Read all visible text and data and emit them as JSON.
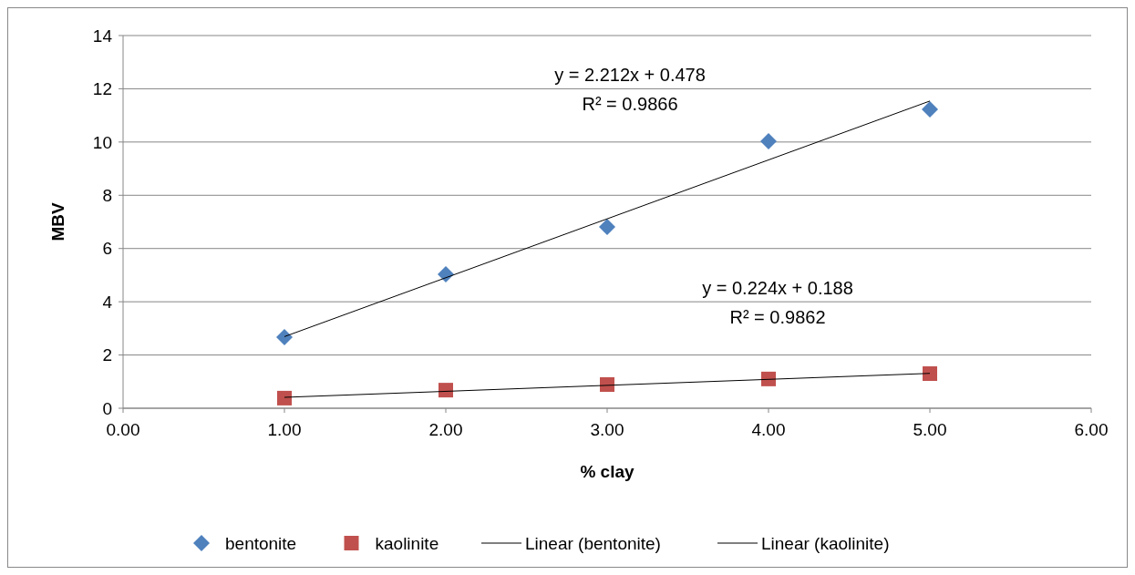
{
  "chart_data": {
    "type": "scatter",
    "xlabel": "% clay",
    "ylabel": "MBV",
    "xlim": [
      0,
      6
    ],
    "xticks": [
      {
        "value": 0,
        "label": "0.00"
      },
      {
        "value": 1,
        "label": "1.00"
      },
      {
        "value": 2,
        "label": "2.00"
      },
      {
        "value": 3,
        "label": "3.00"
      },
      {
        "value": 4,
        "label": "4.00"
      },
      {
        "value": 5,
        "label": "5.00"
      },
      {
        "value": 6,
        "label": "6.00"
      }
    ],
    "ylim": [
      0,
      14
    ],
    "yticks": [
      0,
      2,
      4,
      6,
      8,
      10,
      12,
      14
    ],
    "grid": "y",
    "legend": "bottom",
    "series": [
      {
        "name": "bentonite",
        "marker": "diamond",
        "color": "#4f81bd",
        "x": [
          1,
          2,
          3,
          4,
          5
        ],
        "values": [
          2.67,
          5.03,
          6.81,
          10.03,
          11.23
        ]
      },
      {
        "name": "kaolinite",
        "marker": "square",
        "color": "#c0504d",
        "x": [
          1,
          2,
          3,
          4,
          5
        ],
        "values": [
          0.38,
          0.68,
          0.89,
          1.1,
          1.3
        ]
      },
      {
        "name": "Linear (bentonite)",
        "type": "line",
        "marker": "none",
        "color": "#000000",
        "x": [
          1,
          5
        ],
        "values": [
          2.69,
          11.54
        ]
      },
      {
        "name": "Linear (kaolinite)",
        "type": "line",
        "marker": "none",
        "color": "#000000",
        "x": [
          1,
          5
        ],
        "values": [
          0.41,
          1.31
        ]
      }
    ],
    "annotations": [
      "y = 2.212x + 0.478",
      "R² = 0.9866",
      "y = 0.224x + 0.188",
      "R² = 0.9862"
    ]
  }
}
